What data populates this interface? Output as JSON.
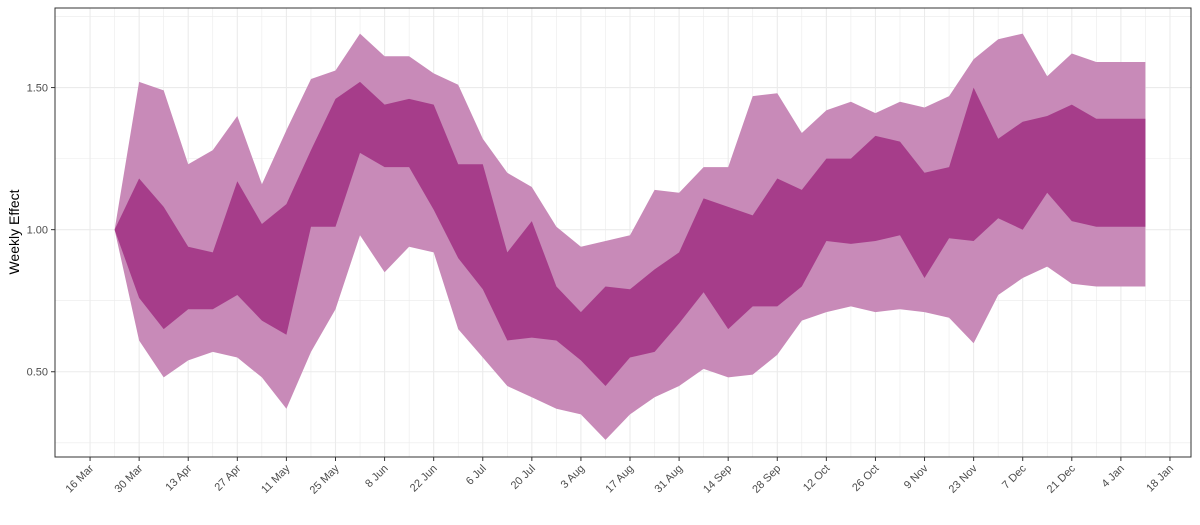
{
  "chart_data": {
    "type": "area",
    "ylabel": "Weekly Effect",
    "xlabel": "",
    "x_unit": "date",
    "y_ticks": [
      0.5,
      1.0,
      1.5
    ],
    "y_tick_labels": [
      "0.50",
      "1.00",
      "1.50"
    ],
    "ylim": [
      0.2,
      1.78
    ],
    "x_ticks": [
      "2020-03-16",
      "2020-03-30",
      "2020-04-13",
      "2020-04-27",
      "2020-05-11",
      "2020-05-25",
      "2020-06-08",
      "2020-06-22",
      "2020-07-06",
      "2020-07-20",
      "2020-08-03",
      "2020-08-17",
      "2020-08-31",
      "2020-09-14",
      "2020-09-28",
      "2020-10-12",
      "2020-10-26",
      "2020-11-09",
      "2020-11-23",
      "2020-12-07",
      "2020-12-21",
      "2021-01-04",
      "2021-01-18"
    ],
    "x_tick_labels": [
      "16 Mar",
      "30 Mar",
      "13 Apr",
      "27 Apr",
      "11 May",
      "25 May",
      "8 Jun",
      "22 Jun",
      "6 Jul",
      "20 Jul",
      "3 Aug",
      "17 Aug",
      "31 Aug",
      "14 Sep",
      "28 Sep",
      "12 Oct",
      "26 Oct",
      "9 Nov",
      "23 Nov",
      "7 Dec",
      "21 Dec",
      "4 Jan",
      "18 Jan"
    ],
    "xlim": [
      "2020-03-06",
      "2021-01-24"
    ],
    "grid": true,
    "legend": "none",
    "colors": {
      "outer_band": "#c88ab8",
      "inner_band": "#a63d8a",
      "grid": "#ebebeb",
      "border": "#333333"
    },
    "x": [
      "2020-03-23",
      "2020-03-30",
      "2020-04-06",
      "2020-04-13",
      "2020-04-20",
      "2020-04-27",
      "2020-05-04",
      "2020-05-11",
      "2020-05-18",
      "2020-05-25",
      "2020-06-01",
      "2020-06-08",
      "2020-06-15",
      "2020-06-22",
      "2020-06-29",
      "2020-07-06",
      "2020-07-13",
      "2020-07-20",
      "2020-07-27",
      "2020-08-03",
      "2020-08-10",
      "2020-08-17",
      "2020-08-24",
      "2020-08-31",
      "2020-09-07",
      "2020-09-14",
      "2020-09-21",
      "2020-09-28",
      "2020-10-05",
      "2020-10-12",
      "2020-10-19",
      "2020-10-26",
      "2020-11-02",
      "2020-11-09",
      "2020-11-16",
      "2020-11-23",
      "2020-11-30",
      "2020-12-07",
      "2020-12-14",
      "2020-12-21",
      "2020-12-28",
      "2021-01-04",
      "2021-01-11"
    ],
    "series": [
      {
        "band": "outer",
        "lower": [
          1.0,
          0.61,
          0.48,
          0.54,
          0.57,
          0.55,
          0.48,
          0.37,
          0.57,
          0.72,
          0.98,
          0.85,
          0.94,
          0.92,
          0.65,
          0.55,
          0.45,
          0.41,
          0.37,
          0.35,
          0.26,
          0.35,
          0.41,
          0.45,
          0.51,
          0.48,
          0.49,
          0.56,
          0.68,
          0.71,
          0.73,
          0.71,
          0.72,
          0.71,
          0.69,
          0.6,
          0.77,
          0.83,
          0.87,
          0.81,
          0.8,
          0.8,
          0.8
        ],
        "upper": [
          1.0,
          1.52,
          1.49,
          1.23,
          1.28,
          1.4,
          1.16,
          1.35,
          1.53,
          1.56,
          1.69,
          1.61,
          1.61,
          1.55,
          1.51,
          1.32,
          1.2,
          1.15,
          1.01,
          0.94,
          0.96,
          0.98,
          1.14,
          1.13,
          1.22,
          1.22,
          1.47,
          1.48,
          1.34,
          1.42,
          1.45,
          1.41,
          1.45,
          1.43,
          1.47,
          1.6,
          1.67,
          1.69,
          1.54,
          1.62,
          1.59,
          1.59,
          1.59
        ]
      },
      {
        "band": "inner",
        "lower": [
          1.0,
          0.76,
          0.65,
          0.72,
          0.72,
          0.77,
          0.68,
          0.63,
          1.01,
          1.01,
          1.27,
          1.22,
          1.22,
          1.07,
          0.9,
          0.79,
          0.61,
          0.62,
          0.61,
          0.54,
          0.45,
          0.55,
          0.57,
          0.67,
          0.78,
          0.65,
          0.73,
          0.73,
          0.8,
          0.96,
          0.95,
          0.96,
          0.98,
          0.83,
          0.97,
          0.96,
          1.04,
          1.0,
          1.13,
          1.03,
          1.01,
          1.01,
          1.01
        ],
        "upper": [
          1.0,
          1.18,
          1.08,
          0.94,
          0.92,
          1.17,
          1.02,
          1.09,
          1.28,
          1.46,
          1.52,
          1.44,
          1.46,
          1.44,
          1.23,
          1.23,
          0.92,
          1.03,
          0.8,
          0.71,
          0.8,
          0.79,
          0.86,
          0.92,
          1.11,
          1.08,
          1.05,
          1.18,
          1.14,
          1.25,
          1.25,
          1.33,
          1.31,
          1.2,
          1.22,
          1.5,
          1.32,
          1.38,
          1.4,
          1.44,
          1.39,
          1.39,
          1.39
        ]
      }
    ]
  }
}
